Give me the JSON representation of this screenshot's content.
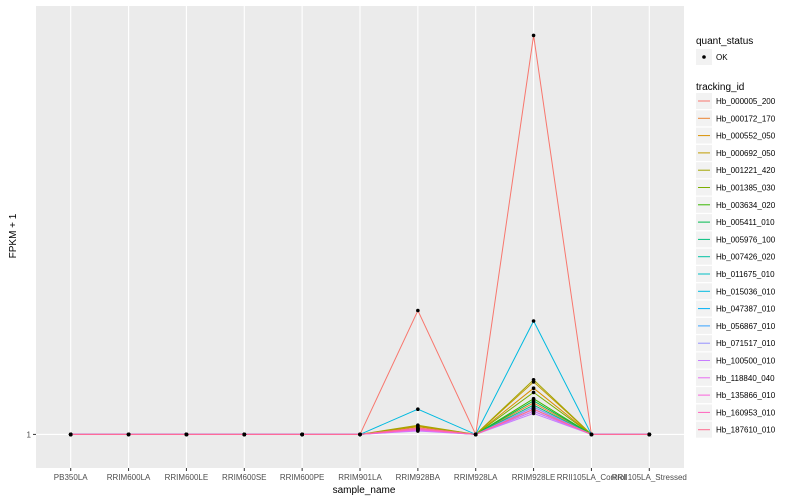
{
  "chart_data": {
    "type": "line",
    "xlabel": "sample_name",
    "ylabel": "FPKM + 1",
    "y_tick_labels": [
      "1"
    ],
    "y_ticks": [
      1
    ],
    "ylim": [
      0.2,
      11.2
    ],
    "grid": true,
    "legend_position": "right",
    "categories": [
      "PB350LA",
      "RRIM600LA",
      "RRIM600LE",
      "RRIM600SE",
      "RRIM600PE",
      "RRIM901LA",
      "RRIM928BA",
      "RRIM928LA",
      "RRIM928LE",
      "RRII105LA_Control",
      "RRII105LA_Stressed"
    ],
    "quant_status_legend": {
      "title": "quant_status",
      "entries": [
        {
          "label": "OK"
        }
      ]
    },
    "tracking_legend_title": "tracking_id",
    "series": [
      {
        "name": "Hb_000005_200",
        "color": "#F8766D",
        "values": [
          1,
          1,
          1,
          1,
          1,
          1,
          3.95,
          1,
          10.5,
          1,
          1
        ]
      },
      {
        "name": "Hb_000172_170",
        "color": "#EA8331",
        "values": [
          1,
          1,
          1,
          1,
          1,
          1,
          1.15,
          1,
          1.75,
          1,
          1
        ]
      },
      {
        "name": "Hb_000552_050",
        "color": "#D89000",
        "values": [
          1,
          1,
          1,
          1,
          1,
          1,
          1.2,
          1,
          2.1,
          1,
          1
        ]
      },
      {
        "name": "Hb_000692_050",
        "color": "#C09B00",
        "values": [
          1,
          1,
          1,
          1,
          1,
          1,
          1.18,
          1,
          2.25,
          1,
          1
        ]
      },
      {
        "name": "Hb_001221_420",
        "color": "#A3A500",
        "values": [
          1,
          1,
          1,
          1,
          1,
          1,
          1.22,
          1,
          2.3,
          1,
          1
        ]
      },
      {
        "name": "Hb_001385_030",
        "color": "#7CAE00",
        "values": [
          1,
          1,
          1,
          1,
          1,
          1,
          1.15,
          1,
          2.0,
          1,
          1
        ]
      },
      {
        "name": "Hb_003634_020",
        "color": "#39B600",
        "values": [
          1,
          1,
          1,
          1,
          1,
          1,
          1.12,
          1,
          1.85,
          1,
          1
        ]
      },
      {
        "name": "Hb_005411_010",
        "color": "#00BB4E",
        "values": [
          1,
          1,
          1,
          1,
          1,
          1,
          1.14,
          1,
          1.8,
          1,
          1
        ]
      },
      {
        "name": "Hb_005976_100",
        "color": "#00BF7D",
        "values": [
          1,
          1,
          1,
          1,
          1,
          1,
          1.13,
          1,
          1.7,
          1,
          1
        ]
      },
      {
        "name": "Hb_007426_020",
        "color": "#00C1A3",
        "values": [
          1,
          1,
          1,
          1,
          1,
          1,
          1.1,
          1,
          1.65,
          1,
          1
        ]
      },
      {
        "name": "Hb_011675_010",
        "color": "#00BFC4",
        "values": [
          1,
          1,
          1,
          1,
          1,
          1,
          1.12,
          1,
          1.6,
          1,
          1
        ]
      },
      {
        "name": "Hb_015036_010",
        "color": "#00BAE0",
        "values": [
          1,
          1,
          1,
          1,
          1,
          1,
          1.6,
          1,
          3.7,
          1,
          1
        ]
      },
      {
        "name": "Hb_047387_010",
        "color": "#00B0F6",
        "values": [
          1,
          1,
          1,
          1,
          1,
          1,
          1.1,
          1,
          1.55,
          1,
          1
        ]
      },
      {
        "name": "Hb_056867_010",
        "color": "#35A2FF",
        "values": [
          1,
          1,
          1,
          1,
          1,
          1,
          1.12,
          1,
          1.6,
          1,
          1
        ]
      },
      {
        "name": "Hb_071517_010",
        "color": "#9590FF",
        "values": [
          1,
          1,
          1,
          1,
          1,
          1,
          1.13,
          1,
          1.65,
          1,
          1
        ]
      },
      {
        "name": "Hb_100500_010",
        "color": "#C77CFF",
        "values": [
          1,
          1,
          1,
          1,
          1,
          1,
          1.08,
          1,
          1.5,
          1,
          1
        ]
      },
      {
        "name": "Hb_118840_040",
        "color": "#E76BF3",
        "values": [
          1,
          1,
          1,
          1,
          1,
          1,
          1.1,
          1,
          1.55,
          1,
          1
        ]
      },
      {
        "name": "Hb_135866_010",
        "color": "#FA62DB",
        "values": [
          1,
          1,
          1,
          1,
          1,
          1,
          1.15,
          1,
          1.6,
          1,
          1
        ]
      },
      {
        "name": "Hb_160953_010",
        "color": "#FF62BC",
        "values": [
          1,
          1,
          1,
          1,
          1,
          1,
          1.12,
          1,
          1.6,
          1,
          1
        ]
      },
      {
        "name": "Hb_187610_010",
        "color": "#FF6C91",
        "values": [
          1,
          1,
          1,
          1,
          1,
          1,
          1.15,
          1,
          1.6,
          1,
          1
        ]
      }
    ]
  }
}
